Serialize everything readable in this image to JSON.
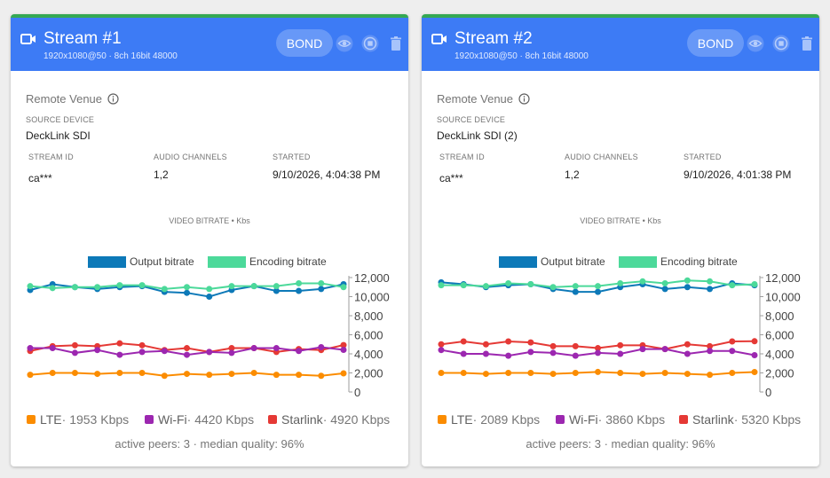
{
  "chart_axis": {
    "ticks": [
      "12,000",
      "10,000",
      "8,000",
      "6,000",
      "4,000",
      "2,000",
      "0"
    ],
    "ylim": [
      0,
      12000
    ]
  },
  "streams": [
    {
      "title": "Stream #1",
      "subtitle": "1920x1080@50 · 8ch 16bit 48000",
      "bond_label": "BOND",
      "venue": "Remote Venue",
      "source_label": "SOURCE DEVICE",
      "source_value": "DeckLink SDI",
      "stream_id_label": "STREAM ID",
      "stream_id_value": "ca***",
      "audio_label": "AUDIO CHANNELS",
      "audio_value": "1,2",
      "started_label": "STARTED",
      "started_value": "9/10/2026, 4:04:38 PM",
      "chart_title": "VIDEO BITRATE • Kbs",
      "legend_output": "Output bitrate",
      "legend_encoding": "Encoding bitrate",
      "lte_label": "LTE",
      "lte_value": "· 1953 Kbps",
      "wifi_label": "Wi-Fi",
      "wifi_value": "· 4420 Kbps",
      "starlink_label": "Starlink",
      "starlink_value": "· 4920 Kbps",
      "peers": "active peers: 3 · median quality: 96%",
      "chart_data": {
        "type": "line",
        "ylabel": "Kbs",
        "ylim": [
          0,
          12000
        ],
        "series": [
          {
            "name": "Output bitrate",
            "color": "#0d79b8",
            "values": [
              10700,
              11300,
              11000,
              10800,
              11000,
              11100,
              10500,
              10400,
              10000,
              10700,
              11100,
              10600,
              10600,
              10800,
              11300
            ]
          },
          {
            "name": "Encoding bitrate",
            "color": "#4cd99a",
            "values": [
              11100,
              10900,
              11000,
              11000,
              11200,
              11200,
              10800,
              11000,
              10800,
              11100,
              11100,
              11100,
              11400,
              11400,
              11000
            ]
          },
          {
            "name": "Starlink",
            "color": "#e53935",
            "values": [
              4300,
              4800,
              4900,
              4800,
              5100,
              4900,
              4400,
              4600,
              4200,
              4600,
              4600,
              4200,
              4500,
              4400,
              4920
            ]
          },
          {
            "name": "Wi-Fi",
            "color": "#9c27b0",
            "values": [
              4600,
              4600,
              4100,
              4400,
              3900,
              4200,
              4300,
              3900,
              4200,
              4100,
              4600,
              4600,
              4300,
              4700,
              4420
            ]
          },
          {
            "name": "LTE",
            "color": "#fb8c00",
            "values": [
              1800,
              2000,
              2000,
              1900,
              2000,
              2000,
              1700,
              1900,
              1800,
              1900,
              2000,
              1800,
              1800,
              1700,
              1953
            ]
          }
        ]
      }
    },
    {
      "title": "Stream #2",
      "subtitle": "1920x1080@50 · 8ch 16bit 48000",
      "bond_label": "BOND",
      "venue": "Remote Venue",
      "source_label": "SOURCE DEVICE",
      "source_value": "DeckLink SDI (2)",
      "stream_id_label": "STREAM ID",
      "stream_id_value": "ca***",
      "audio_label": "AUDIO CHANNELS",
      "audio_value": "1,2",
      "started_label": "STARTED",
      "started_value": "9/10/2026, 4:01:38 PM",
      "chart_title": "VIDEO BITRATE • Kbs",
      "legend_output": "Output bitrate",
      "legend_encoding": "Encoding bitrate",
      "lte_label": "LTE",
      "lte_value": "· 2089 Kbps",
      "wifi_label": "Wi-Fi",
      "wifi_value": "· 3860 Kbps",
      "starlink_label": "Starlink",
      "starlink_value": "· 5320 Kbps",
      "peers": "active peers: 3 · median quality: 96%",
      "chart_data": {
        "type": "line",
        "ylabel": "Kbs",
        "ylim": [
          0,
          12000
        ],
        "series": [
          {
            "name": "Output bitrate",
            "color": "#0d79b8",
            "values": [
              11500,
              11300,
              11000,
              11200,
              11300,
              10800,
              10500,
              10500,
              11000,
              11300,
              10800,
              11000,
              10800,
              11400,
              11200
            ]
          },
          {
            "name": "Encoding bitrate",
            "color": "#4cd99a",
            "values": [
              11200,
              11200,
              11100,
              11400,
              11300,
              11000,
              11100,
              11100,
              11400,
              11600,
              11400,
              11700,
              11600,
              11200,
              11300
            ]
          },
          {
            "name": "Starlink",
            "color": "#e53935",
            "values": [
              5000,
              5300,
              5000,
              5300,
              5200,
              4800,
              4800,
              4600,
              4900,
              4900,
              4500,
              5000,
              4800,
              5300,
              5320
            ]
          },
          {
            "name": "Wi-Fi",
            "color": "#9c27b0",
            "values": [
              4400,
              4000,
              4000,
              3800,
              4200,
              4100,
              3800,
              4100,
              4000,
              4500,
              4500,
              4000,
              4300,
              4300,
              3860
            ]
          },
          {
            "name": "LTE",
            "color": "#fb8c00",
            "values": [
              2000,
              2000,
              1900,
              2000,
              2000,
              1900,
              2000,
              2100,
              2000,
              1900,
              2000,
              1900,
              1800,
              2000,
              2089
            ]
          }
        ]
      }
    }
  ]
}
